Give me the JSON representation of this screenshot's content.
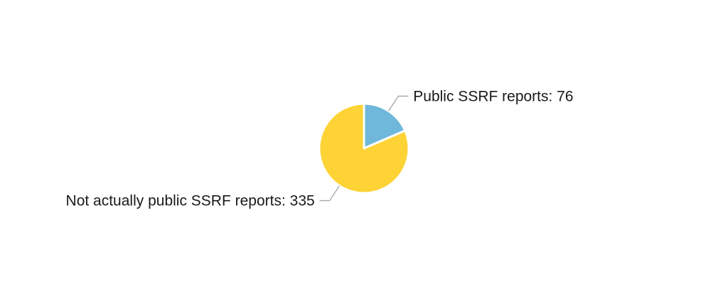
{
  "chart_data": {
    "type": "pie",
    "title": "",
    "slices": [
      {
        "label": "Public SSRF reports: 76",
        "name": "Public SSRF reports",
        "value": 76,
        "color": "#6fb8db"
      },
      {
        "label": "Not actually public SSRF reports: 335",
        "name": "Not actually public SSRF reports",
        "value": 335,
        "color": "#fdd335"
      }
    ]
  }
}
